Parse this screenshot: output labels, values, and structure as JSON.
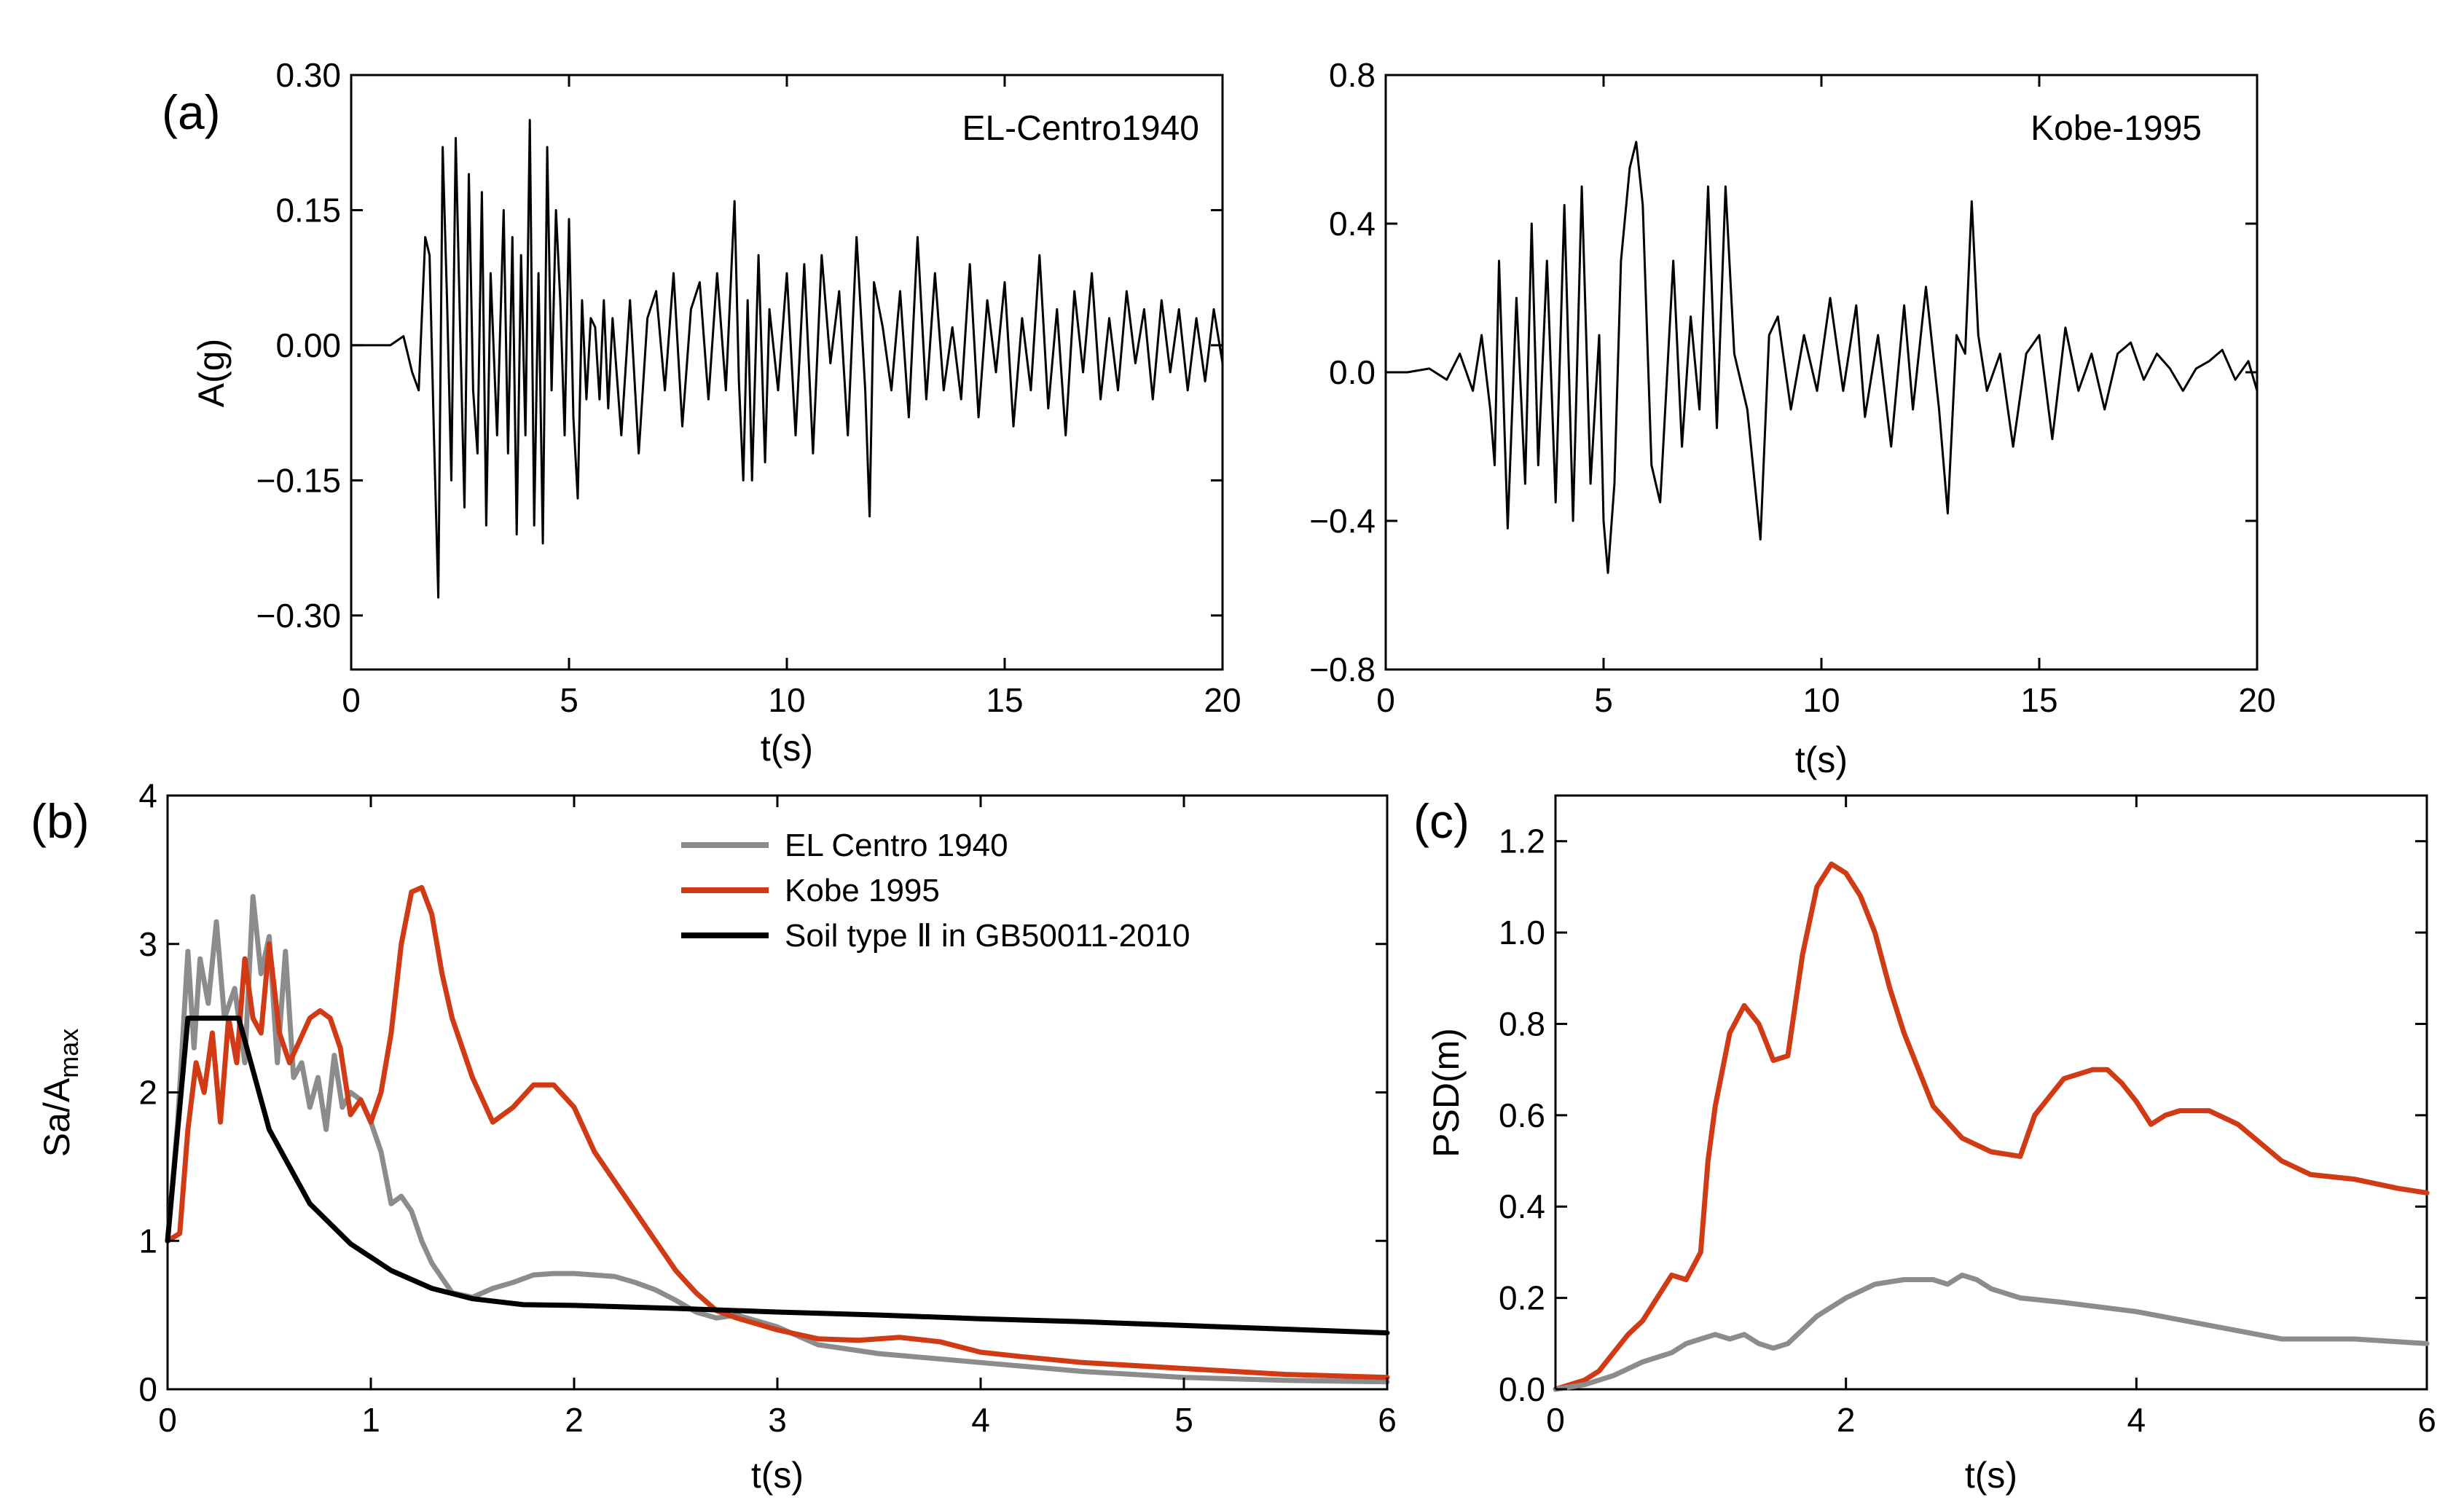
{
  "chart_data": [
    {
      "id": "a1",
      "type": "line",
      "panel_label": "(a)",
      "annotation": "EL-Centro1940",
      "xlabel": "t(s)",
      "ylabel": "A(g)",
      "xlim": [
        0,
        20
      ],
      "ylim": [
        -0.36,
        0.3
      ],
      "xticks": [
        0,
        5,
        10,
        15,
        20
      ],
      "xtick_labels": [
        "0",
        "5",
        "10",
        "15",
        "20"
      ],
      "yticks": [
        0.3,
        0.15,
        0,
        -0.15,
        -0.3
      ],
      "ytick_labels": [
        "0.30",
        "0.15",
        "0.00",
        "−0.15",
        "−0.30"
      ],
      "series": [
        {
          "name": "EL-Centro1940",
          "color": "#000000",
          "x": [
            0,
            0.5,
            0.9,
            1.2,
            1.4,
            1.55,
            1.7,
            1.8,
            1.9,
            2.0,
            2.1,
            2.2,
            2.3,
            2.4,
            2.5,
            2.6,
            2.7,
            2.8,
            2.9,
            3.0,
            3.1,
            3.2,
            3.35,
            3.5,
            3.6,
            3.7,
            3.8,
            3.9,
            4.0,
            4.1,
            4.2,
            4.3,
            4.4,
            4.5,
            4.6,
            4.7,
            4.8,
            4.9,
            5.0,
            5.1,
            5.2,
            5.3,
            5.4,
            5.5,
            5.6,
            5.7,
            5.8,
            5.9,
            6.0,
            6.2,
            6.4,
            6.6,
            6.8,
            7.0,
            7.2,
            7.4,
            7.6,
            7.8,
            8.0,
            8.2,
            8.4,
            8.6,
            8.8,
            8.9,
            9.0,
            9.1,
            9.2,
            9.35,
            9.5,
            9.6,
            9.8,
            10.0,
            10.2,
            10.4,
            10.6,
            10.8,
            11.0,
            11.2,
            11.4,
            11.6,
            11.8,
            11.9,
            12.0,
            12.2,
            12.4,
            12.6,
            12.8,
            13.0,
            13.2,
            13.4,
            13.6,
            13.8,
            14.0,
            14.2,
            14.4,
            14.6,
            14.8,
            15.0,
            15.2,
            15.4,
            15.6,
            15.8,
            16.0,
            16.2,
            16.4,
            16.6,
            16.8,
            17.0,
            17.2,
            17.4,
            17.6,
            17.8,
            18.0,
            18.2,
            18.4,
            18.6,
            18.8,
            19.0,
            19.2,
            19.4,
            19.6,
            19.8,
            20.0
          ],
          "y": [
            0,
            0,
            0,
            0.01,
            -0.03,
            -0.05,
            0.12,
            0.1,
            -0.1,
            -0.28,
            0.22,
            0.05,
            -0.15,
            0.23,
            0.02,
            -0.18,
            0.19,
            -0.05,
            -0.12,
            0.17,
            -0.2,
            0.08,
            -0.1,
            0.15,
            -0.12,
            0.12,
            -0.21,
            0.1,
            -0.1,
            0.25,
            -0.2,
            0.08,
            -0.22,
            0.22,
            -0.05,
            0.15,
            0.05,
            -0.1,
            0.14,
            -0.08,
            -0.17,
            0.05,
            -0.06,
            0.03,
            0.02,
            -0.06,
            0.05,
            -0.07,
            0.03,
            -0.1,
            0.05,
            -0.12,
            0.03,
            0.06,
            -0.05,
            0.08,
            -0.09,
            0.04,
            0.07,
            -0.06,
            0.08,
            -0.05,
            0.16,
            -0.04,
            -0.15,
            0.05,
            -0.15,
            0.1,
            -0.13,
            0.04,
            -0.05,
            0.08,
            -0.1,
            0.09,
            -0.12,
            0.1,
            -0.02,
            0.06,
            -0.1,
            0.12,
            -0.05,
            -0.19,
            0.07,
            0.02,
            -0.05,
            0.06,
            -0.08,
            0.12,
            -0.06,
            0.08,
            -0.05,
            0.02,
            -0.06,
            0.09,
            -0.08,
            0.05,
            -0.03,
            0.07,
            -0.09,
            0.03,
            -0.05,
            0.1,
            -0.07,
            0.04,
            -0.1,
            0.06,
            -0.03,
            0.08,
            -0.06,
            0.03,
            -0.05,
            0.06,
            -0.02,
            0.04,
            -0.06,
            0.05,
            -0.03,
            0.04,
            -0.05,
            0.03,
            -0.04,
            0.04,
            -0.02
          ]
        }
      ]
    },
    {
      "id": "a2",
      "type": "line",
      "annotation": "Kobe-1995",
      "xlabel": "t(s)",
      "ylabel": "",
      "xlim": [
        0,
        20
      ],
      "ylim": [
        -0.8,
        0.8
      ],
      "xticks": [
        0,
        5,
        10,
        15,
        20
      ],
      "xtick_labels": [
        "0",
        "5",
        "10",
        "15",
        "20"
      ],
      "yticks": [
        0.8,
        0.4,
        0,
        -0.4,
        -0.8
      ],
      "ytick_labels": [
        "0.8",
        "0.4",
        "0.0",
        "−0.4",
        "−0.8"
      ],
      "series": [
        {
          "name": "Kobe-1995",
          "color": "#000000",
          "x": [
            0,
            0.5,
            1.0,
            1.4,
            1.7,
            2.0,
            2.2,
            2.4,
            2.5,
            2.6,
            2.8,
            3.0,
            3.2,
            3.35,
            3.5,
            3.7,
            3.9,
            4.1,
            4.3,
            4.5,
            4.7,
            4.9,
            5.0,
            5.1,
            5.25,
            5.4,
            5.6,
            5.75,
            5.9,
            6.1,
            6.3,
            6.6,
            6.8,
            7.0,
            7.2,
            7.4,
            7.6,
            7.8,
            8.0,
            8.3,
            8.6,
            8.8,
            9.0,
            9.3,
            9.6,
            9.9,
            10.2,
            10.5,
            10.8,
            11.0,
            11.3,
            11.6,
            11.9,
            12.1,
            12.4,
            12.7,
            12.9,
            13.1,
            13.3,
            13.45,
            13.6,
            13.8,
            14.1,
            14.4,
            14.7,
            15.0,
            15.3,
            15.6,
            15.9,
            16.2,
            16.5,
            16.8,
            17.1,
            17.4,
            17.7,
            18.0,
            18.3,
            18.6,
            18.9,
            19.2,
            19.5,
            19.8,
            20.0
          ],
          "y": [
            0,
            0,
            0.01,
            -0.02,
            0.05,
            -0.05,
            0.1,
            -0.1,
            -0.25,
            0.3,
            -0.42,
            0.2,
            -0.3,
            0.4,
            -0.25,
            0.3,
            -0.35,
            0.45,
            -0.4,
            0.5,
            -0.3,
            0.1,
            -0.4,
            -0.54,
            -0.3,
            0.3,
            0.55,
            0.62,
            0.45,
            -0.25,
            -0.35,
            0.3,
            -0.2,
            0.15,
            -0.1,
            0.5,
            -0.15,
            0.5,
            0.05,
            -0.1,
            -0.45,
            0.1,
            0.15,
            -0.1,
            0.1,
            -0.05,
            0.2,
            -0.05,
            0.18,
            -0.12,
            0.1,
            -0.2,
            0.18,
            -0.1,
            0.23,
            -0.1,
            -0.38,
            0.1,
            0.05,
            0.46,
            0.1,
            -0.05,
            0.05,
            -0.2,
            0.05,
            0.1,
            -0.18,
            0.12,
            -0.05,
            0.05,
            -0.1,
            0.05,
            0.08,
            -0.02,
            0.05,
            0.01,
            -0.05,
            0.01,
            0.03,
            0.06,
            -0.02,
            0.03,
            -0.05
          ]
        }
      ]
    },
    {
      "id": "b",
      "type": "line",
      "panel_label": "(b)",
      "xlabel": "t(s)",
      "ylabel_main": "Sa/A",
      "ylabel_sub": "max",
      "xlim": [
        0,
        6
      ],
      "ylim": [
        0,
        4
      ],
      "xticks": [
        0,
        1,
        2,
        3,
        4,
        5,
        6
      ],
      "xtick_labels": [
        "0",
        "1",
        "2",
        "3",
        "4",
        "5",
        "6"
      ],
      "yticks": [
        0,
        1,
        2,
        3,
        4
      ],
      "ytick_labels": [
        "0",
        "1",
        "2",
        "3",
        "4"
      ],
      "legend": [
        "EL Centro 1940",
        "Kobe 1995",
        "Soil type Ⅱ  in GB50011-2010"
      ],
      "legend_position": "top-center",
      "series": [
        {
          "name": "EL Centro 1940",
          "color": "#8c8c8c",
          "x": [
            0,
            0.05,
            0.1,
            0.13,
            0.16,
            0.2,
            0.24,
            0.28,
            0.33,
            0.38,
            0.42,
            0.46,
            0.5,
            0.54,
            0.58,
            0.62,
            0.66,
            0.7,
            0.74,
            0.78,
            0.82,
            0.86,
            0.9,
            0.95,
            1.0,
            1.05,
            1.1,
            1.15,
            1.2,
            1.25,
            1.3,
            1.4,
            1.5,
            1.6,
            1.7,
            1.8,
            1.9,
            2.0,
            2.1,
            2.2,
            2.3,
            2.4,
            2.5,
            2.6,
            2.7,
            2.8,
            3.0,
            3.2,
            3.5,
            4.0,
            4.5,
            5.0,
            5.5,
            6.0
          ],
          "y": [
            1.0,
            1.8,
            2.95,
            2.3,
            2.9,
            2.6,
            3.15,
            2.5,
            2.7,
            2.2,
            3.32,
            2.8,
            3.05,
            2.2,
            2.95,
            2.1,
            2.2,
            1.9,
            2.1,
            1.75,
            2.25,
            1.9,
            2.0,
            1.95,
            1.8,
            1.6,
            1.25,
            1.3,
            1.2,
            1.0,
            0.85,
            0.65,
            0.62,
            0.68,
            0.72,
            0.77,
            0.78,
            0.78,
            0.77,
            0.76,
            0.72,
            0.67,
            0.6,
            0.52,
            0.48,
            0.5,
            0.42,
            0.3,
            0.24,
            0.18,
            0.12,
            0.08,
            0.06,
            0.05
          ]
        },
        {
          "name": "Kobe 1995",
          "color": "#d03a14",
          "x": [
            0,
            0.06,
            0.1,
            0.14,
            0.18,
            0.22,
            0.26,
            0.3,
            0.34,
            0.38,
            0.42,
            0.46,
            0.5,
            0.55,
            0.6,
            0.65,
            0.7,
            0.75,
            0.8,
            0.85,
            0.9,
            0.95,
            1.0,
            1.05,
            1.1,
            1.15,
            1.2,
            1.25,
            1.3,
            1.35,
            1.4,
            1.5,
            1.6,
            1.7,
            1.8,
            1.9,
            2.0,
            2.1,
            2.2,
            2.3,
            2.4,
            2.5,
            2.6,
            2.7,
            2.8,
            2.9,
            3.0,
            3.2,
            3.4,
            3.6,
            3.8,
            4.0,
            4.2,
            4.5,
            5.0,
            5.5,
            6.0
          ],
          "y": [
            1.0,
            1.05,
            1.75,
            2.2,
            2.0,
            2.4,
            1.8,
            2.5,
            2.2,
            2.9,
            2.5,
            2.4,
            3.0,
            2.4,
            2.2,
            2.35,
            2.5,
            2.55,
            2.5,
            2.3,
            1.85,
            1.95,
            1.8,
            2.0,
            2.4,
            3.0,
            3.35,
            3.38,
            3.2,
            2.8,
            2.5,
            2.1,
            1.8,
            1.9,
            2.05,
            2.05,
            1.9,
            1.6,
            1.4,
            1.2,
            1.0,
            0.8,
            0.65,
            0.53,
            0.48,
            0.44,
            0.4,
            0.34,
            0.33,
            0.35,
            0.32,
            0.25,
            0.22,
            0.18,
            0.14,
            0.1,
            0.08
          ]
        },
        {
          "name": "Soil type Ⅱ  in GB50011-2010",
          "color": "#000000",
          "x": [
            0,
            0.1,
            0.35,
            0.5,
            0.7,
            0.9,
            1.1,
            1.3,
            1.5,
            1.75,
            2.0,
            2.5,
            3.0,
            3.5,
            4.0,
            4.5,
            5.0,
            5.5,
            6.0
          ],
          "y": [
            1.0,
            2.5,
            2.5,
            1.75,
            1.25,
            0.98,
            0.8,
            0.68,
            0.61,
            0.57,
            0.565,
            0.545,
            0.52,
            0.5,
            0.475,
            0.455,
            0.43,
            0.405,
            0.38
          ]
        }
      ]
    },
    {
      "id": "c",
      "type": "line",
      "panel_label": "(c)",
      "xlabel": "t(s)",
      "ylabel": "PSD(m)",
      "xlim": [
        0,
        6
      ],
      "ylim": [
        0,
        1.3
      ],
      "xticks": [
        0,
        2,
        4,
        6
      ],
      "xtick_labels": [
        "0",
        "2",
        "4",
        "6"
      ],
      "yticks": [
        0,
        0.2,
        0.4,
        0.6,
        0.8,
        1.0,
        1.2
      ],
      "ytick_labels": [
        "0.0",
        "0.2",
        "0.4",
        "0.6",
        "0.8",
        "1.0",
        "1.2"
      ],
      "series": [
        {
          "name": "Kobe 1995",
          "color": "#d03a14",
          "x": [
            0,
            0.1,
            0.2,
            0.3,
            0.4,
            0.5,
            0.6,
            0.7,
            0.8,
            0.9,
            1.0,
            1.05,
            1.1,
            1.2,
            1.3,
            1.4,
            1.5,
            1.6,
            1.7,
            1.8,
            1.9,
            2.0,
            2.1,
            2.2,
            2.3,
            2.4,
            2.5,
            2.6,
            2.8,
            3.0,
            3.2,
            3.3,
            3.5,
            3.7,
            3.8,
            3.9,
            4.0,
            4.1,
            4.2,
            4.3,
            4.5,
            4.7,
            5.0,
            5.2,
            5.5,
            5.8,
            6.0
          ],
          "y": [
            0,
            0.01,
            0.02,
            0.04,
            0.08,
            0.12,
            0.15,
            0.2,
            0.25,
            0.24,
            0.3,
            0.5,
            0.62,
            0.78,
            0.84,
            0.8,
            0.72,
            0.73,
            0.95,
            1.1,
            1.15,
            1.13,
            1.08,
            1.0,
            0.88,
            0.78,
            0.7,
            0.62,
            0.55,
            0.52,
            0.51,
            0.6,
            0.68,
            0.7,
            0.7,
            0.67,
            0.63,
            0.58,
            0.6,
            0.61,
            0.61,
            0.58,
            0.5,
            0.47,
            0.46,
            0.44,
            0.43
          ]
        },
        {
          "name": "EL Centro 1940",
          "color": "#8c8c8c",
          "x": [
            0,
            0.2,
            0.4,
            0.6,
            0.8,
            0.9,
            1.0,
            1.1,
            1.2,
            1.3,
            1.4,
            1.5,
            1.6,
            1.7,
            1.8,
            2.0,
            2.2,
            2.4,
            2.6,
            2.7,
            2.8,
            2.9,
            3.0,
            3.2,
            3.5,
            4.0,
            4.5,
            5.0,
            5.5,
            6.0
          ],
          "y": [
            0,
            0.01,
            0.03,
            0.06,
            0.08,
            0.1,
            0.11,
            0.12,
            0.11,
            0.12,
            0.1,
            0.09,
            0.1,
            0.13,
            0.16,
            0.2,
            0.23,
            0.24,
            0.24,
            0.23,
            0.25,
            0.24,
            0.22,
            0.2,
            0.19,
            0.17,
            0.14,
            0.11,
            0.11,
            0.1
          ]
        }
      ]
    }
  ]
}
